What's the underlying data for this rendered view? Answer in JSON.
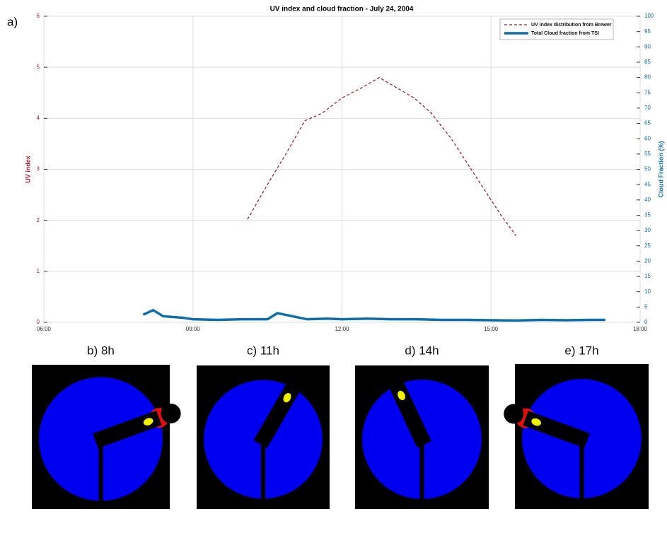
{
  "chart_data": {
    "type": "line",
    "panel_label": "a)",
    "title": "UV index and cloud fraction - July 24, 2004",
    "xlim": [
      6,
      18
    ],
    "xticks": [
      {
        "value": 6,
        "label": "06:00"
      },
      {
        "value": 9,
        "label": "09:00"
      },
      {
        "value": 12,
        "label": "12:00"
      },
      {
        "value": 15,
        "label": "15:00"
      },
      {
        "value": 18,
        "label": "18:00"
      }
    ],
    "ylabel": "UV index",
    "ylim": [
      0,
      6
    ],
    "yticks": [
      0,
      1,
      2,
      3,
      4,
      5,
      6
    ],
    "y2label": "Cloud Fraction (%)",
    "y2lim": [
      0,
      100
    ],
    "y2ticks": [
      0,
      5,
      10,
      15,
      20,
      25,
      30,
      35,
      40,
      45,
      50,
      55,
      60,
      65,
      70,
      75,
      80,
      85,
      90,
      95,
      100
    ],
    "grid": true,
    "legend": "upper right",
    "series": [
      {
        "name": "UV index distribution from Brewer",
        "color": "#a3212e",
        "dashed": true,
        "x": [
          10.1,
          10.5,
          10.9,
          11.25,
          11.6,
          12.0,
          12.4,
          12.75,
          13.1,
          13.45,
          13.8,
          14.2,
          14.6,
          15.0,
          15.2,
          15.5
        ],
        "values": [
          2.02,
          2.7,
          3.35,
          3.95,
          4.1,
          4.4,
          4.6,
          4.8,
          4.6,
          4.4,
          4.1,
          3.6,
          3.0,
          2.4,
          2.1,
          1.7
        ]
      },
      {
        "name": "Total Cloud fraction from TSI",
        "color": "#0d6ead",
        "axis": "y2",
        "dashed": false,
        "x": [
          8.0,
          8.2,
          8.4,
          8.8,
          9.0,
          9.5,
          10.0,
          10.5,
          10.7,
          11.0,
          11.3,
          11.7,
          12.0,
          12.5,
          13.0,
          13.5,
          14.0,
          14.5,
          15.0,
          15.5,
          16.0,
          16.5,
          17.0,
          17.3
        ],
        "values": [
          2.5,
          4,
          2,
          1.5,
          1,
          0.8,
          1,
          1,
          3,
          2,
          1,
          1.2,
          1,
          1.2,
          1,
          1,
          0.8,
          0.8,
          0.7,
          0.6,
          0.8,
          0.7,
          0.8,
          0.8
        ]
      }
    ]
  },
  "images": [
    {
      "label": "b) 8h"
    },
    {
      "label": "c) 11h"
    },
    {
      "label": "d) 14h"
    },
    {
      "label": "e) 17h"
    }
  ]
}
